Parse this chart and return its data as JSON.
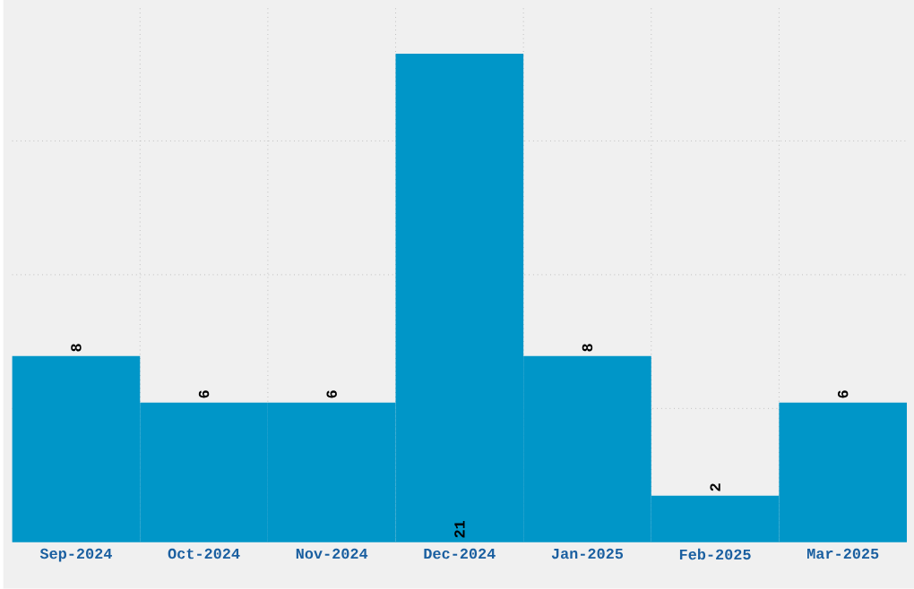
{
  "chart_data": {
    "type": "bar",
    "categories": [
      "Sep-2024",
      "Oct-2024",
      "Nov-2024",
      "Dec-2024",
      "Jan-2025",
      "Feb-2025",
      "Mar-2025"
    ],
    "values": [
      8,
      6,
      6,
      21,
      8,
      2,
      6
    ],
    "color": "#0096c8",
    "ylim": [
      0,
      23
    ],
    "yticks": [
      {
        "value": 5.75,
        "label": null
      },
      {
        "value": 11.5,
        "label": null
      },
      {
        "value": 17.25,
        "label": null
      }
    ],
    "grid": true,
    "data_labels": true
  }
}
